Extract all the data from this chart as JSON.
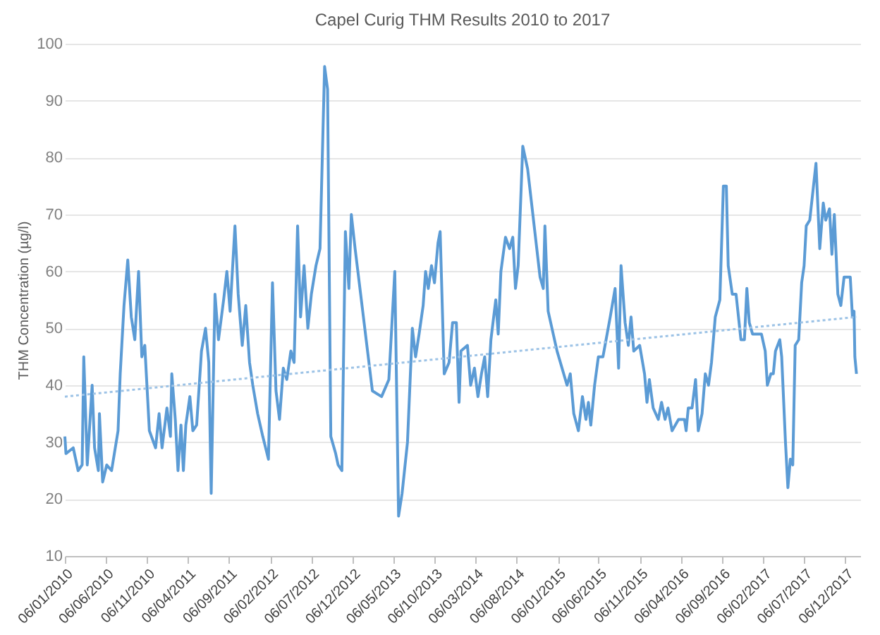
{
  "chart_data": {
    "type": "line",
    "title": "Capel Curig THM Results 2010 to 2017",
    "ylabel": "THM Concentration (µg/l)",
    "ylim": [
      10,
      100
    ],
    "yticks": [
      10,
      20,
      30,
      40,
      50,
      60,
      70,
      80,
      90,
      100
    ],
    "xlim": [
      "2010-01-06",
      "2018-01-30"
    ],
    "xticks": [
      {
        "value": "2010-01-06",
        "label": "06/01/2010"
      },
      {
        "value": "2010-06-06",
        "label": "06/06/2010"
      },
      {
        "value": "2010-11-06",
        "label": "06/11/2010"
      },
      {
        "value": "2011-04-06",
        "label": "06/04/2011"
      },
      {
        "value": "2011-09-06",
        "label": "06/09/2011"
      },
      {
        "value": "2012-02-06",
        "label": "06/02/2012"
      },
      {
        "value": "2012-07-06",
        "label": "06/07/2012"
      },
      {
        "value": "2012-12-06",
        "label": "06/12/2012"
      },
      {
        "value": "2013-05-06",
        "label": "06/05/2013"
      },
      {
        "value": "2013-10-06",
        "label": "06/10/2013"
      },
      {
        "value": "2014-03-06",
        "label": "06/03/2014"
      },
      {
        "value": "2014-08-06",
        "label": "06/08/2014"
      },
      {
        "value": "2015-01-06",
        "label": "06/01/2015"
      },
      {
        "value": "2015-06-06",
        "label": "06/06/2015"
      },
      {
        "value": "2015-11-06",
        "label": "06/11/2015"
      },
      {
        "value": "2016-04-06",
        "label": "06/04/2016"
      },
      {
        "value": "2016-09-06",
        "label": "06/09/2016"
      },
      {
        "value": "2017-02-06",
        "label": "06/02/2017"
      },
      {
        "value": "2017-07-06",
        "label": "06/07/2017"
      },
      {
        "value": "2017-12-06",
        "label": "06/12/2017"
      }
    ],
    "grid": "y",
    "marker": "none",
    "series": [
      {
        "color": "#5b9bd5",
        "line_style": "solid",
        "x": [
          "2010-01-06",
          "2010-01-10",
          "2010-02-06",
          "2010-02-24",
          "2010-03-11",
          "2010-03-17",
          "2010-03-30",
          "2010-04-17",
          "2010-04-26",
          "2010-05-10",
          "2010-05-14",
          "2010-05-26",
          "2010-06-10",
          "2010-06-28",
          "2010-07-22",
          "2010-07-30",
          "2010-08-13",
          "2010-08-27",
          "2010-09-09",
          "2010-09-22",
          "2010-10-06",
          "2010-10-18",
          "2010-10-29",
          "2010-11-15",
          "2010-12-08",
          "2010-12-21",
          "2011-01-01",
          "2011-01-19",
          "2011-02-01",
          "2011-02-06",
          "2011-02-19",
          "2011-03-01",
          "2011-03-12",
          "2011-03-21",
          "2011-03-30",
          "2011-04-14",
          "2011-04-25",
          "2011-05-09",
          "2011-05-27",
          "2011-06-11",
          "2011-06-23",
          "2011-07-02",
          "2011-07-16",
          "2011-07-29",
          "2011-08-17",
          "2011-08-29",
          "2011-09-10",
          "2011-09-28",
          "2011-10-10",
          "2011-10-25",
          "2011-11-07",
          "2011-11-21",
          "2011-12-03",
          "2011-12-21",
          "2012-01-09",
          "2012-01-30",
          "2012-02-14",
          "2012-02-27",
          "2012-03-11",
          "2012-03-25",
          "2012-04-07",
          "2012-04-22",
          "2012-05-04",
          "2012-05-17",
          "2012-05-28",
          "2012-06-10",
          "2012-06-24",
          "2012-07-07",
          "2012-07-24",
          "2012-08-08",
          "2012-08-25",
          "2012-09-05",
          "2012-09-17",
          "2012-10-05",
          "2012-10-14",
          "2012-10-28",
          "2012-11-10",
          "2012-11-23",
          "2012-12-02",
          "2012-12-16",
          "2013-02-18",
          "2013-03-24",
          "2013-04-20",
          "2013-05-12",
          "2013-05-26",
          "2013-06-08",
          "2013-06-28",
          "2013-07-16",
          "2013-07-28",
          "2013-08-10",
          "2013-08-25",
          "2013-09-03",
          "2013-09-13",
          "2013-09-25",
          "2013-10-06",
          "2013-10-19",
          "2013-10-27",
          "2013-11-11",
          "2013-11-29",
          "2013-12-12",
          "2013-12-26",
          "2014-01-05",
          "2014-01-12",
          "2014-02-05",
          "2014-02-17",
          "2014-03-03",
          "2014-03-16",
          "2014-03-29",
          "2014-04-10",
          "2014-04-21",
          "2014-05-03",
          "2014-05-21",
          "2014-05-30",
          "2014-06-09",
          "2014-06-26",
          "2014-07-11",
          "2014-07-23",
          "2014-08-02",
          "2014-08-12",
          "2014-08-29",
          "2014-09-16",
          "2014-11-01",
          "2014-11-13",
          "2014-11-19",
          "2014-12-01",
          "2015-01-03",
          "2015-02-09",
          "2015-02-21",
          "2015-03-06",
          "2015-03-23",
          "2015-04-07",
          "2015-04-20",
          "2015-04-29",
          "2015-05-08",
          "2015-05-22",
          "2015-06-05",
          "2015-06-22",
          "2015-07-19",
          "2015-08-06",
          "2015-08-19",
          "2015-08-28",
          "2015-09-12",
          "2015-09-24",
          "2015-10-04",
          "2015-10-14",
          "2015-11-05",
          "2015-11-23",
          "2015-12-02",
          "2015-12-11",
          "2015-12-25",
          "2016-01-13",
          "2016-01-25",
          "2016-02-07",
          "2016-02-18",
          "2016-03-04",
          "2016-03-28",
          "2016-04-19",
          "2016-04-25",
          "2016-05-03",
          "2016-05-17",
          "2016-05-30",
          "2016-06-09",
          "2016-06-23",
          "2016-07-05",
          "2016-07-17",
          "2016-07-28",
          "2016-08-11",
          "2016-08-28",
          "2016-09-10",
          "2016-09-21",
          "2016-09-28",
          "2016-10-13",
          "2016-10-27",
          "2016-11-14",
          "2016-11-27",
          "2016-12-06",
          "2016-12-15",
          "2016-12-27",
          "2017-01-29",
          "2017-02-12",
          "2017-02-20",
          "2017-03-05",
          "2017-03-14",
          "2017-03-22",
          "2017-04-07",
          "2017-04-14",
          "2017-04-28",
          "2017-05-07",
          "2017-05-16",
          "2017-05-25",
          "2017-06-03",
          "2017-06-16",
          "2017-06-27",
          "2017-07-06",
          "2017-07-14",
          "2017-07-27",
          "2017-08-19",
          "2017-09-02",
          "2017-09-15",
          "2017-09-24",
          "2017-10-08",
          "2017-10-17",
          "2017-10-26",
          "2017-11-08",
          "2017-11-19",
          "2017-12-01",
          "2017-12-24",
          "2018-01-01",
          "2018-01-07",
          "2018-01-10",
          "2018-01-16"
        ],
        "values": [
          31,
          28,
          29,
          25,
          26,
          45,
          26,
          40,
          29,
          25,
          35,
          23,
          26,
          25,
          32,
          42,
          54,
          62,
          52,
          48,
          60,
          45,
          47,
          32,
          29,
          35,
          29,
          36,
          31,
          42,
          34,
          25,
          33,
          25,
          33,
          38,
          32,
          33,
          46,
          50,
          44,
          21,
          56,
          48,
          55,
          60,
          53,
          68,
          56,
          47,
          54,
          44,
          40,
          35,
          31,
          27,
          58,
          39,
          34,
          43,
          41,
          46,
          44,
          68,
          52,
          61,
          50,
          56,
          61,
          64,
          96,
          92,
          31,
          28,
          26,
          25,
          67,
          57,
          70,
          64,
          39,
          38,
          41,
          60,
          17,
          21,
          30,
          50,
          45,
          49,
          54,
          60,
          57,
          61,
          58,
          65,
          67,
          42,
          44,
          51,
          51,
          37,
          46,
          47,
          40,
          43,
          38,
          42,
          45,
          38,
          48,
          55,
          49,
          60,
          66,
          64,
          66,
          57,
          61,
          82,
          78,
          59,
          57,
          68,
          53,
          46,
          40,
          42,
          35,
          32,
          38,
          34,
          37,
          33,
          40,
          45,
          45,
          52,
          57,
          43,
          61,
          51,
          47,
          52,
          46,
          47,
          42,
          37,
          41,
          36,
          34,
          37,
          34,
          36,
          32,
          34,
          34,
          32,
          36,
          36,
          41,
          32,
          35,
          42,
          40,
          44,
          52,
          55,
          75,
          75,
          61,
          56,
          56,
          48,
          48,
          57,
          51,
          49,
          49,
          46,
          40,
          42,
          42,
          46,
          48,
          45,
          30,
          22,
          27,
          26,
          47,
          48,
          58,
          61,
          68,
          69,
          79,
          64,
          72,
          69,
          71,
          63,
          70,
          56,
          54,
          59,
          59,
          52,
          53,
          45,
          42
        ]
      },
      {
        "type": "line",
        "color": "#9dc3e6",
        "line_style": "dotted",
        "x": [
          "2010-01-06",
          "2018-01-16"
        ],
        "values": [
          38,
          52
        ]
      }
    ]
  }
}
